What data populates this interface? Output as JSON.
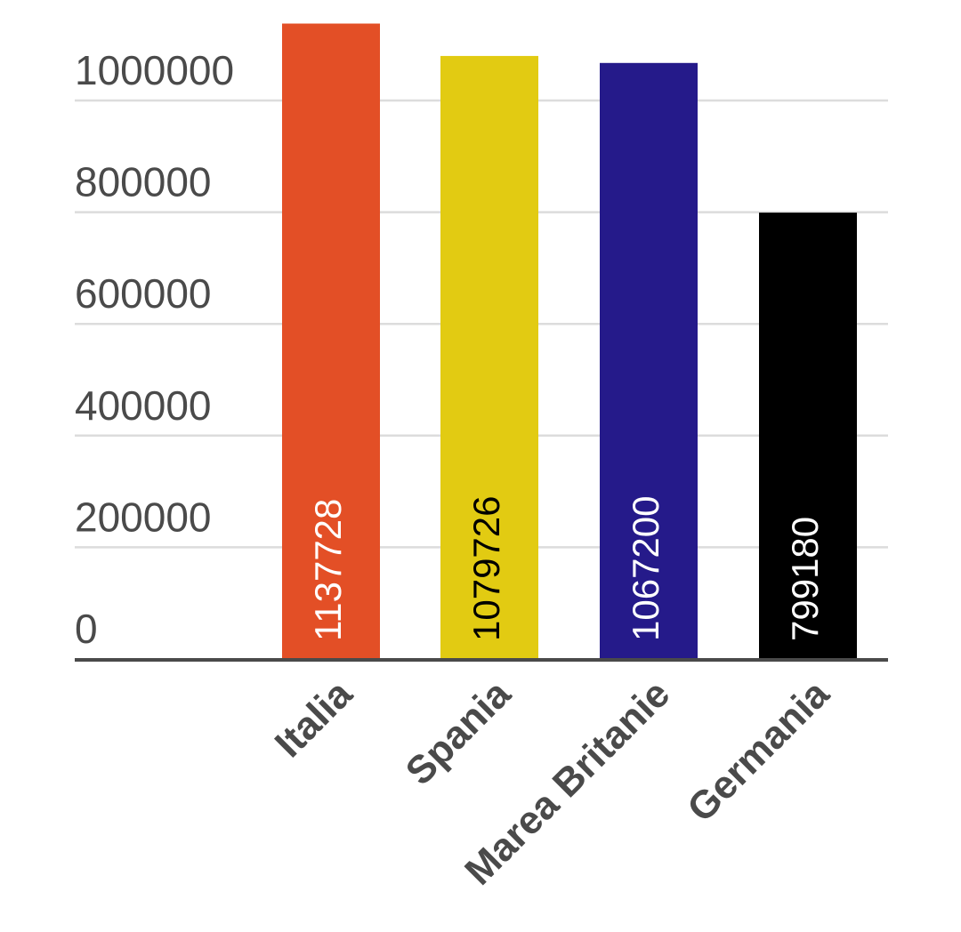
{
  "chart_data": {
    "type": "bar",
    "categories": [
      "Italia",
      "Spania",
      "Marea Britanie",
      "Germania"
    ],
    "values": [
      1137728,
      1079726,
      1067200,
      799180
    ],
    "data_labels": [
      "1137728",
      "1079726",
      "1067200",
      "799180"
    ],
    "bar_colors": [
      "#e34f26",
      "#e2cb12",
      "#251a8a",
      "#000000"
    ],
    "label_colors": [
      "#ffffff",
      "#000000",
      "#ffffff",
      "#ffffff"
    ],
    "ylim": [
      0,
      1137728
    ],
    "yticks": [
      0,
      200000,
      400000,
      600000,
      800000,
      1000000
    ],
    "ytick_labels": [
      "0",
      "200000",
      "400000",
      "600000",
      "800000",
      "1000000"
    ],
    "grid": true,
    "legend": "none"
  }
}
